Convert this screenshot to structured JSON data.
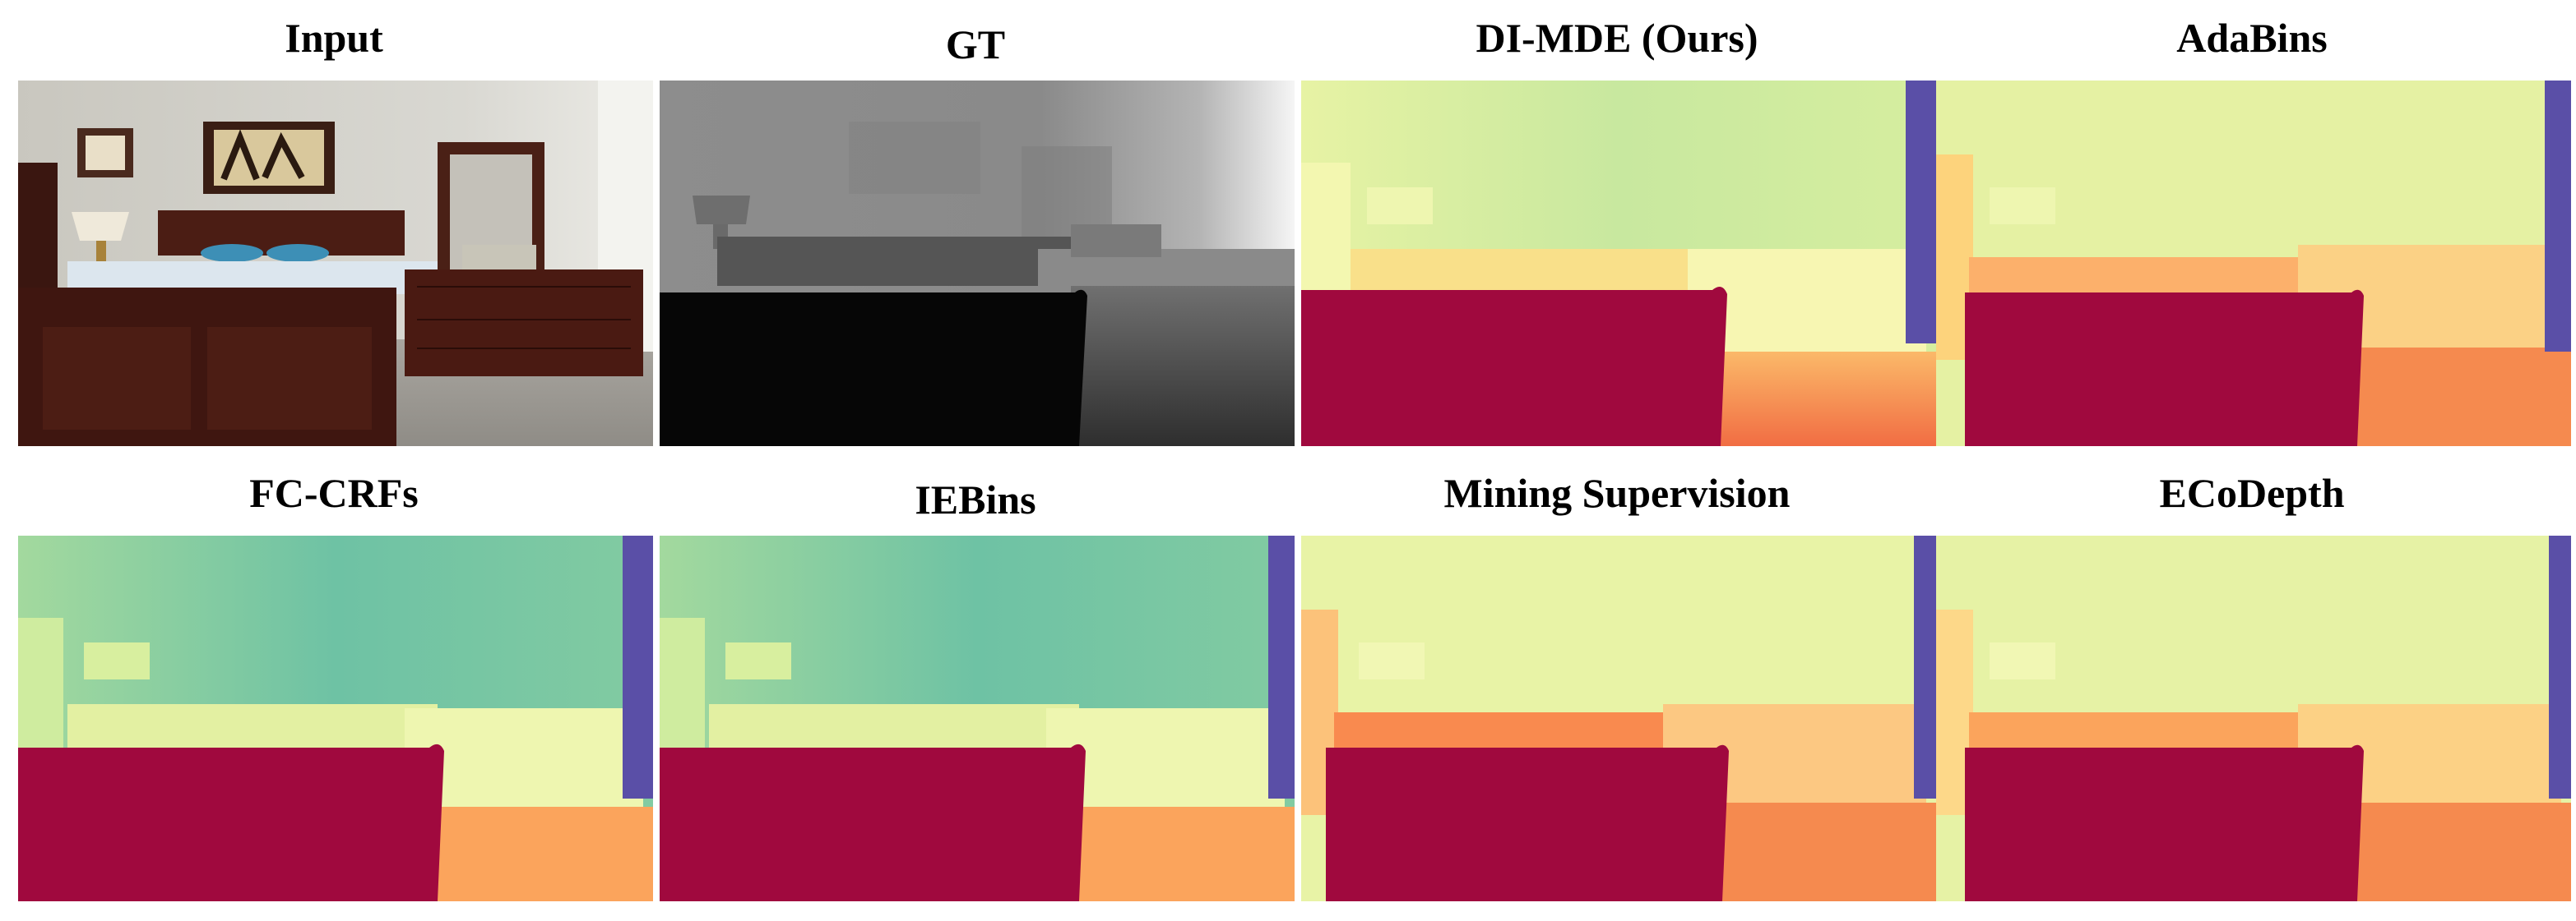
{
  "figure": {
    "panels": [
      {
        "id": "input",
        "title": "Input",
        "kind": "rgb"
      },
      {
        "id": "gt",
        "title": "GT",
        "kind": "gt"
      },
      {
        "id": "ours",
        "title": "DI-MDE (Ours)",
        "kind": "warm"
      },
      {
        "id": "adabins",
        "title": "AdaBins",
        "kind": "warm"
      },
      {
        "id": "fccrfs",
        "title": "FC-CRFs",
        "kind": "cool"
      },
      {
        "id": "iebins",
        "title": "IEBins",
        "kind": "cool"
      },
      {
        "id": "mining",
        "title": "Mining Supervision",
        "kind": "warm"
      },
      {
        "id": "ecodepth",
        "title": "ECoDepth",
        "kind": "warm"
      }
    ],
    "colors": {
      "near": "#a0093e",
      "far_warm": "#e3f0a2",
      "far_cool": "#6ec2a4",
      "mid_orange": "#f47c45",
      "window": "#5a4fa7",
      "gt_near": "#050505"
    }
  }
}
